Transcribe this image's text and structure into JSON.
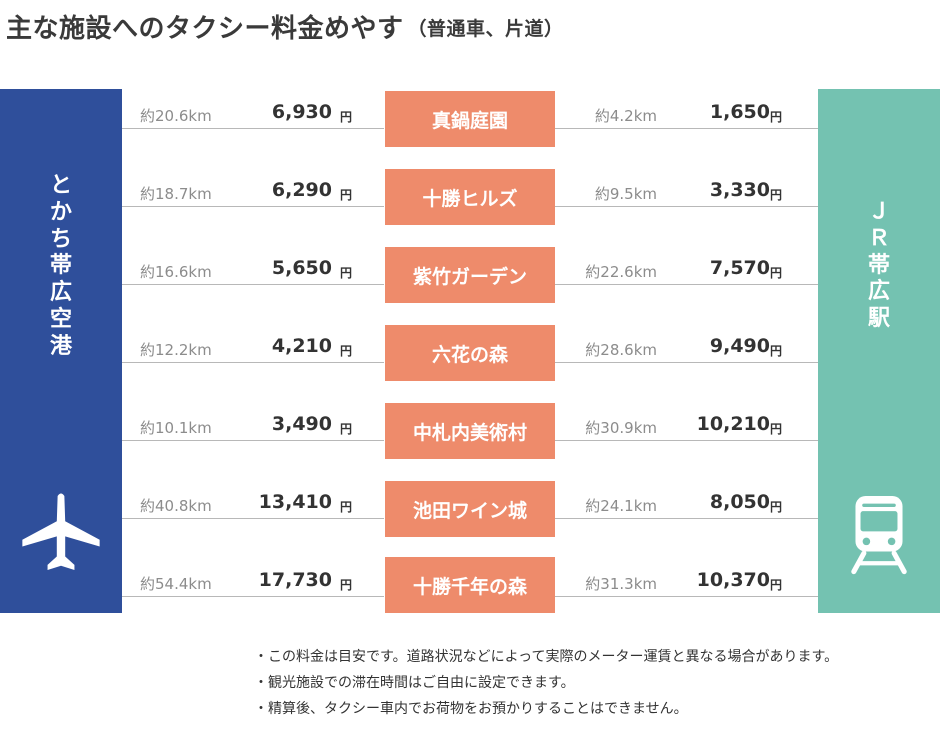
{
  "title": "主な施設へのタクシー料金めやす",
  "subtitle": "（普通車、片道）",
  "colors": {
    "airport": "#2f4f9b",
    "station": "#74c2b1",
    "destination": "#ee8b6b",
    "text": "#333333",
    "distance_text": "#8c8c8c",
    "rule": "#b8b8b8"
  },
  "airport": {
    "label": [
      "と",
      "か",
      "ち",
      "帯",
      "広",
      "空",
      "港"
    ],
    "icon": "airplane-icon"
  },
  "station": {
    "label": [
      "Ｊ",
      "Ｒ",
      "帯",
      "広",
      "駅"
    ],
    "icon": "train-icon"
  },
  "currency_unit": "円",
  "rows": [
    {
      "destination": "真鍋庭園",
      "airport_distance": "約20.6km",
      "airport_fare": "6,930",
      "station_distance": "約4.2km",
      "station_fare": "1,650"
    },
    {
      "destination": "十勝ヒルズ",
      "airport_distance": "約18.7km",
      "airport_fare": "6,290",
      "station_distance": "約9.5km",
      "station_fare": "3,330"
    },
    {
      "destination": "紫竹ガーデン",
      "airport_distance": "約16.6km",
      "airport_fare": "5,650",
      "station_distance": "約22.6km",
      "station_fare": "7,570"
    },
    {
      "destination": "六花の森",
      "airport_distance": "約12.2km",
      "airport_fare": "4,210",
      "station_distance": "約28.6km",
      "station_fare": "9,490"
    },
    {
      "destination": "中札内美術村",
      "airport_distance": "約10.1km",
      "airport_fare": "3,490",
      "station_distance": "約30.9km",
      "station_fare": "10,210"
    },
    {
      "destination": "池田ワイン城",
      "airport_distance": "約40.8km",
      "airport_fare": "13,410",
      "station_distance": "約24.1km",
      "station_fare": "8,050"
    },
    {
      "destination": "十勝千年の森",
      "airport_distance": "約54.4km",
      "airport_fare": "17,730",
      "station_distance": "約31.3km",
      "station_fare": "10,370"
    }
  ],
  "notes": [
    "・この料金は目安です。道路状況などによって実際のメーター運賃と異なる場合があります。",
    "・観光施設での滞在時間はご自由に設定できます。",
    "・精算後、タクシー車内でお荷物をお預かりすることはできません。"
  ]
}
